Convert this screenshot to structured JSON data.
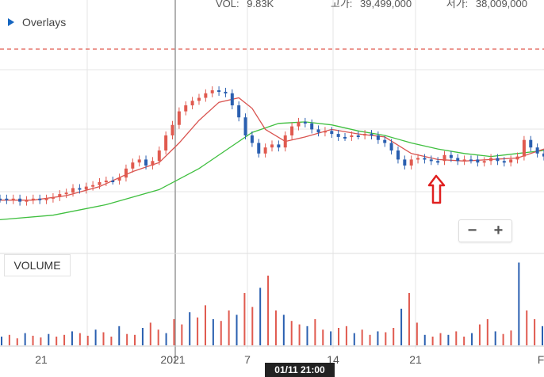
{
  "header": {
    "items": [
      {
        "label": "VOL:",
        "value": "9.83K"
      },
      {
        "label": "고가:",
        "value": "39,499,000"
      },
      {
        "label": "저가:",
        "value": "38,009,000"
      }
    ]
  },
  "overlays_label": "Overlays",
  "volume_label": "VOLUME",
  "zoom": {
    "minus": "−",
    "plus": "+"
  },
  "crosshair_label": "01/11 21:00",
  "colors": {
    "up": "#e05a4f",
    "down": "#2a5fb0",
    "ma_short": "#d9534f",
    "ma_long": "#3fbf3f",
    "arrow": "#e02020",
    "grid": "#e6e6e6"
  },
  "chart_data": {
    "type": "candlestick",
    "x_tick_labels": [
      "21",
      "2021",
      "7",
      "14",
      "21",
      "F"
    ],
    "price_series": [
      {
        "x": 0,
        "y": 0.82
      },
      {
        "x": 1,
        "y": 0.83
      },
      {
        "x": 2,
        "y": 0.82
      },
      {
        "x": 3,
        "y": 0.84
      },
      {
        "x": 4,
        "y": 0.83
      },
      {
        "x": 5,
        "y": 0.82
      },
      {
        "x": 6,
        "y": 0.83
      },
      {
        "x": 7,
        "y": 0.82
      },
      {
        "x": 8,
        "y": 0.81
      },
      {
        "x": 9,
        "y": 0.79
      },
      {
        "x": 10,
        "y": 0.78
      },
      {
        "x": 11,
        "y": 0.75
      },
      {
        "x": 12,
        "y": 0.76
      },
      {
        "x": 13,
        "y": 0.74
      },
      {
        "x": 14,
        "y": 0.73
      },
      {
        "x": 15,
        "y": 0.71
      },
      {
        "x": 16,
        "y": 0.7
      },
      {
        "x": 17,
        "y": 0.7
      },
      {
        "x": 18,
        "y": 0.68
      },
      {
        "x": 19,
        "y": 0.62
      },
      {
        "x": 20,
        "y": 0.58
      },
      {
        "x": 21,
        "y": 0.56
      },
      {
        "x": 22,
        "y": 0.6
      },
      {
        "x": 23,
        "y": 0.57
      },
      {
        "x": 24,
        "y": 0.5
      },
      {
        "x": 25,
        "y": 0.4
      },
      {
        "x": 26,
        "y": 0.33
      },
      {
        "x": 27,
        "y": 0.24
      },
      {
        "x": 28,
        "y": 0.2
      },
      {
        "x": 29,
        "y": 0.17
      },
      {
        "x": 30,
        "y": 0.15
      },
      {
        "x": 31,
        "y": 0.12
      },
      {
        "x": 32,
        "y": 0.1
      },
      {
        "x": 33,
        "y": 0.11
      },
      {
        "x": 34,
        "y": 0.12
      },
      {
        "x": 35,
        "y": 0.2
      },
      {
        "x": 36,
        "y": 0.28
      },
      {
        "x": 37,
        "y": 0.4
      },
      {
        "x": 38,
        "y": 0.45
      },
      {
        "x": 39,
        "y": 0.52
      },
      {
        "x": 40,
        "y": 0.48
      },
      {
        "x": 41,
        "y": 0.46
      },
      {
        "x": 42,
        "y": 0.48
      },
      {
        "x": 43,
        "y": 0.4
      },
      {
        "x": 44,
        "y": 0.34
      },
      {
        "x": 45,
        "y": 0.31
      },
      {
        "x": 46,
        "y": 0.32
      },
      {
        "x": 47,
        "y": 0.36
      },
      {
        "x": 48,
        "y": 0.38
      },
      {
        "x": 49,
        "y": 0.37
      },
      {
        "x": 50,
        "y": 0.39
      },
      {
        "x": 51,
        "y": 0.41
      },
      {
        "x": 52,
        "y": 0.41
      },
      {
        "x": 53,
        "y": 0.4
      },
      {
        "x": 54,
        "y": 0.4
      },
      {
        "x": 55,
        "y": 0.39
      },
      {
        "x": 56,
        "y": 0.4
      },
      {
        "x": 57,
        "y": 0.43
      },
      {
        "x": 58,
        "y": 0.45
      },
      {
        "x": 59,
        "y": 0.5
      },
      {
        "x": 60,
        "y": 0.56
      },
      {
        "x": 61,
        "y": 0.6
      },
      {
        "x": 62,
        "y": 0.56
      },
      {
        "x": 63,
        "y": 0.55
      },
      {
        "x": 64,
        "y": 0.56
      },
      {
        "x": 65,
        "y": 0.57
      },
      {
        "x": 66,
        "y": 0.57
      },
      {
        "x": 67,
        "y": 0.53
      },
      {
        "x": 68,
        "y": 0.55
      },
      {
        "x": 69,
        "y": 0.57
      },
      {
        "x": 70,
        "y": 0.56
      },
      {
        "x": 71,
        "y": 0.56
      },
      {
        "x": 72,
        "y": 0.58
      },
      {
        "x": 73,
        "y": 0.57
      },
      {
        "x": 74,
        "y": 0.55
      },
      {
        "x": 75,
        "y": 0.57
      },
      {
        "x": 76,
        "y": 0.58
      },
      {
        "x": 77,
        "y": 0.56
      },
      {
        "x": 78,
        "y": 0.54
      },
      {
        "x": 79,
        "y": 0.43
      },
      {
        "x": 80,
        "y": 0.48
      },
      {
        "x": 81,
        "y": 0.52
      },
      {
        "x": 82,
        "y": 0.54
      }
    ],
    "ma_short": [
      {
        "x": 0,
        "y": 0.83
      },
      {
        "x": 5,
        "y": 0.83
      },
      {
        "x": 10,
        "y": 0.8
      },
      {
        "x": 15,
        "y": 0.74
      },
      {
        "x": 20,
        "y": 0.64
      },
      {
        "x": 24,
        "y": 0.58
      },
      {
        "x": 27,
        "y": 0.45
      },
      {
        "x": 30,
        "y": 0.3
      },
      {
        "x": 33,
        "y": 0.18
      },
      {
        "x": 36,
        "y": 0.15
      },
      {
        "x": 38,
        "y": 0.22
      },
      {
        "x": 40,
        "y": 0.36
      },
      {
        "x": 43,
        "y": 0.44
      },
      {
        "x": 46,
        "y": 0.41
      },
      {
        "x": 50,
        "y": 0.36
      },
      {
        "x": 54,
        "y": 0.39
      },
      {
        "x": 58,
        "y": 0.41
      },
      {
        "x": 62,
        "y": 0.52
      },
      {
        "x": 66,
        "y": 0.56
      },
      {
        "x": 70,
        "y": 0.57
      },
      {
        "x": 74,
        "y": 0.56
      },
      {
        "x": 78,
        "y": 0.55
      },
      {
        "x": 82,
        "y": 0.49
      }
    ],
    "ma_long": [
      {
        "x": 0,
        "y": 0.96
      },
      {
        "x": 8,
        "y": 0.93
      },
      {
        "x": 16,
        "y": 0.86
      },
      {
        "x": 24,
        "y": 0.76
      },
      {
        "x": 30,
        "y": 0.62
      },
      {
        "x": 34,
        "y": 0.5
      },
      {
        "x": 38,
        "y": 0.38
      },
      {
        "x": 42,
        "y": 0.32
      },
      {
        "x": 46,
        "y": 0.31
      },
      {
        "x": 50,
        "y": 0.33
      },
      {
        "x": 54,
        "y": 0.37
      },
      {
        "x": 58,
        "y": 0.4
      },
      {
        "x": 62,
        "y": 0.45
      },
      {
        "x": 66,
        "y": 0.49
      },
      {
        "x": 70,
        "y": 0.52
      },
      {
        "x": 74,
        "y": 0.54
      },
      {
        "x": 78,
        "y": 0.52
      },
      {
        "x": 82,
        "y": 0.5
      }
    ],
    "volume": [
      0.1,
      0.12,
      0.08,
      0.14,
      0.11,
      0.09,
      0.13,
      0.1,
      0.12,
      0.16,
      0.14,
      0.11,
      0.18,
      0.15,
      0.1,
      0.22,
      0.13,
      0.12,
      0.2,
      0.26,
      0.18,
      0.14,
      0.3,
      0.24,
      0.38,
      0.32,
      0.46,
      0.3,
      0.28,
      0.4,
      0.35,
      0.6,
      0.44,
      0.66,
      0.8,
      0.4,
      0.35,
      0.28,
      0.24,
      0.22,
      0.3,
      0.18,
      0.16,
      0.2,
      0.22,
      0.14,
      0.18,
      0.12,
      0.16,
      0.15,
      0.2,
      0.42,
      0.6,
      0.26,
      0.12,
      0.1,
      0.14,
      0.12,
      0.16,
      0.1,
      0.14,
      0.24,
      0.3,
      0.16,
      0.13,
      0.17,
      0.95,
      0.4,
      0.3,
      0.22
    ]
  }
}
